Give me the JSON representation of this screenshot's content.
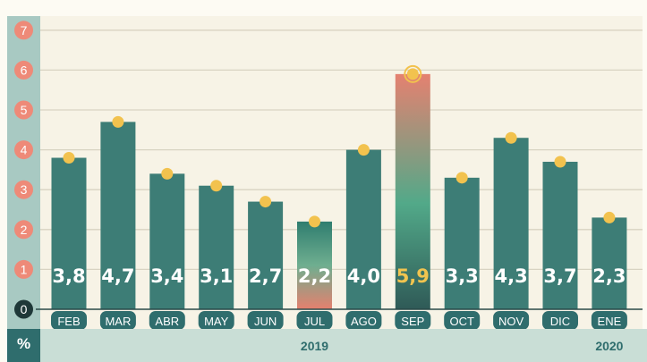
{
  "chart_data": {
    "type": "bar",
    "categories": [
      "FEB",
      "MAR",
      "ABR",
      "MAY",
      "JUN",
      "JUL",
      "AGO",
      "SEP",
      "OCT",
      "NOV",
      "DIC",
      "ENE"
    ],
    "values": [
      3.8,
      4.7,
      3.4,
      3.1,
      2.7,
      2.2,
      4.0,
      5.9,
      3.3,
      4.3,
      3.7,
      2.3
    ],
    "value_labels": [
      "3,8",
      "4,7",
      "3,4",
      "3,1",
      "2,7",
      "2,2",
      "4,0",
      "5,9",
      "3,3",
      "4,3",
      "3,7",
      "2,3"
    ],
    "highlighted": {
      "max": "SEP",
      "min": "JUL"
    },
    "y_ticks": [
      "0",
      "1",
      "2",
      "3",
      "4",
      "5",
      "6",
      "7"
    ],
    "ylim": [
      0,
      7
    ],
    "y_unit": "%",
    "year_labels": [
      {
        "text": "2019",
        "from": "FEB",
        "to": "DIC"
      },
      {
        "text": "2020",
        "from": "ENE",
        "to": "ENE"
      }
    ],
    "grid": true,
    "colors": {
      "bar": "#3d7d76",
      "marker": "#f2c24e",
      "tick_circle": "#ee8a78",
      "axis_band": "#a8c9c2",
      "highlight_top": "#e58170",
      "highlight_mid": "#52a989",
      "highlight_bottom": "#2f5a57",
      "highlight_label": "#f1c44f",
      "label": "#ffffff",
      "year_text": "#2f6d6d"
    }
  }
}
